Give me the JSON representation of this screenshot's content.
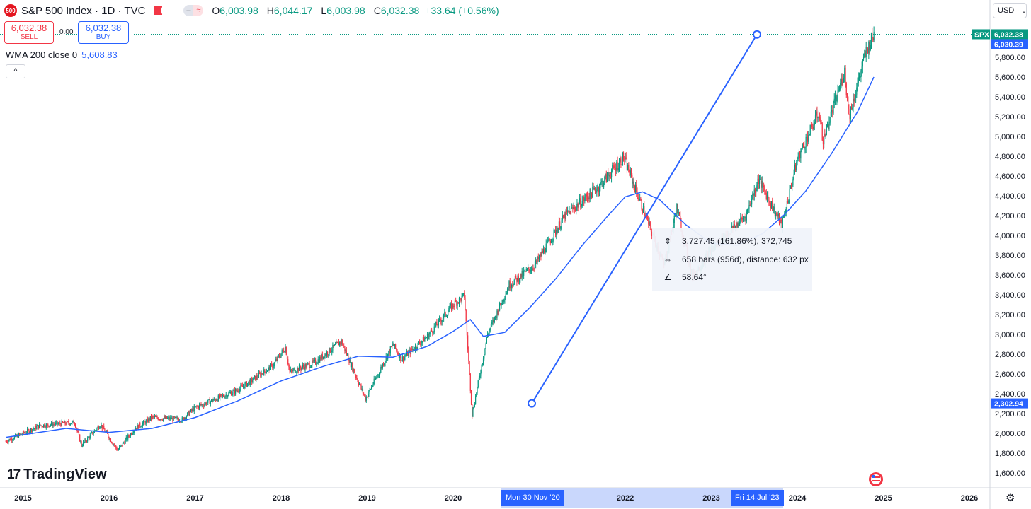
{
  "header": {
    "logo_text": "500",
    "title": "S&P 500 Index · 1D · TVC",
    "ohlc": {
      "o_label": "O",
      "o": "6,003.98",
      "h_label": "H",
      "h": "6,044.17",
      "l_label": "L",
      "l": "6,003.98",
      "c_label": "C",
      "c": "6,032.38",
      "change": "+33.64 (+0.56%)"
    }
  },
  "trade": {
    "sell_price": "6,032.38",
    "sell_label": "SELL",
    "spread": "0.00",
    "buy_price": "6,032.38",
    "buy_label": "BUY"
  },
  "indicator": {
    "label": "WMA 200 close 0",
    "value": "5,608.83"
  },
  "collapse_glyph": "^",
  "currency": "USD",
  "measure": {
    "price_change": "3,727.45 (161.86%), 372,745",
    "bars": "658 bars (956d), distance: 632 px",
    "angle": "58.64°",
    "start_price": 2302.94,
    "end_price": 6030.39,
    "start_date": "Mon 30 Nov '20",
    "end_date": "Fri 14 Jul '23"
  },
  "brand": "TradingView",
  "price_tags": {
    "symbol": "SPX",
    "last": "6,032.38",
    "measure_end": "6,030.39",
    "measure_start": "2,302.94"
  },
  "colors": {
    "up": "#089981",
    "down": "#f23645",
    "wma": "#2962ff",
    "accent": "#2962ff"
  },
  "chart_data": {
    "type": "candlestick",
    "title": "S&P 500 Index · 1D · TVC",
    "y_ticks": [
      1600,
      1800,
      2000,
      2200,
      2400,
      2600,
      2800,
      3000,
      3200,
      3400,
      3600,
      3800,
      4000,
      4200,
      4400,
      4600,
      4800,
      5000,
      5200,
      5400,
      5600,
      5800
    ],
    "y_tick_labels": [
      "1,600.00",
      "1,800.00",
      "2,000.00",
      "2,200.00",
      "2,400.00",
      "2,600.00",
      "2,800.00",
      "3,000.00",
      "3,200.00",
      "3,400.00",
      "3,600.00",
      "3,800.00",
      "4,000.00",
      "4,200.00",
      "4,400.00",
      "4,600.00",
      "4,800.00",
      "5,000.00",
      "5,200.00",
      "5,400.00",
      "5,600.00",
      "5,800.00"
    ],
    "x_ticks": [
      {
        "t": 2015.0,
        "label": "2015"
      },
      {
        "t": 2016.0,
        "label": "2016"
      },
      {
        "t": 2017.0,
        "label": "2017"
      },
      {
        "t": 2018.0,
        "label": "2018"
      },
      {
        "t": 2019.0,
        "label": "2019"
      },
      {
        "t": 2020.0,
        "label": "2020"
      },
      {
        "t": 2022.0,
        "label": "2022"
      },
      {
        "t": 2023.0,
        "label": "2023"
      },
      {
        "t": 2024.0,
        "label": "2024"
      },
      {
        "t": 2025.0,
        "label": "2025"
      },
      {
        "t": 2026.0,
        "label": "2026"
      }
    ],
    "price_path": [
      [
        2014.8,
        1920
      ],
      [
        2015.2,
        2080
      ],
      [
        2015.6,
        2110
      ],
      [
        2015.68,
        1880
      ],
      [
        2015.9,
        2090
      ],
      [
        2016.1,
        1830
      ],
      [
        2016.3,
        2050
      ],
      [
        2016.5,
        2160
      ],
      [
        2016.85,
        2140
      ],
      [
        2017.0,
        2260
      ],
      [
        2017.5,
        2440
      ],
      [
        2017.9,
        2680
      ],
      [
        2018.05,
        2870
      ],
      [
        2018.1,
        2620
      ],
      [
        2018.4,
        2720
      ],
      [
        2018.7,
        2930
      ],
      [
        2018.98,
        2350
      ],
      [
        2019.3,
        2900
      ],
      [
        2019.4,
        2750
      ],
      [
        2019.7,
        2980
      ],
      [
        2020.0,
        3300
      ],
      [
        2020.13,
        3390
      ],
      [
        2020.22,
        2190
      ],
      [
        2020.4,
        3000
      ],
      [
        2020.65,
        3500
      ],
      [
        2020.95,
        3700
      ],
      [
        2021.3,
        4200
      ],
      [
        2021.7,
        4500
      ],
      [
        2021.98,
        4790
      ],
      [
        2022.45,
        3700
      ],
      [
        2022.6,
        4280
      ],
      [
        2022.78,
        3580
      ],
      [
        2023.0,
        3850
      ],
      [
        2023.4,
        4200
      ],
      [
        2023.55,
        4570
      ],
      [
        2023.82,
        4100
      ],
      [
        2024.0,
        4770
      ],
      [
        2024.25,
        5250
      ],
      [
        2024.3,
        4960
      ],
      [
        2024.55,
        5660
      ],
      [
        2024.6,
        5200
      ],
      [
        2024.8,
        5860
      ],
      [
        2024.89,
        6032
      ]
    ],
    "wma_path": [
      [
        2014.8,
        1960
      ],
      [
        2015.5,
        2050
      ],
      [
        2016.0,
        2010
      ],
      [
        2016.5,
        2050
      ],
      [
        2017.0,
        2160
      ],
      [
        2017.5,
        2330
      ],
      [
        2018.0,
        2530
      ],
      [
        2018.5,
        2680
      ],
      [
        2018.9,
        2780
      ],
      [
        2019.3,
        2770
      ],
      [
        2019.7,
        2880
      ],
      [
        2020.0,
        3030
      ],
      [
        2020.2,
        3150
      ],
      [
        2020.35,
        2980
      ],
      [
        2020.6,
        3020
      ],
      [
        2020.9,
        3280
      ],
      [
        2021.2,
        3570
      ],
      [
        2021.5,
        3900
      ],
      [
        2021.8,
        4200
      ],
      [
        2022.0,
        4390
      ],
      [
        2022.2,
        4440
      ],
      [
        2022.4,
        4360
      ],
      [
        2022.7,
        4110
      ],
      [
        2023.0,
        3920
      ],
      [
        2023.3,
        3900
      ],
      [
        2023.6,
        4020
      ],
      [
        2023.85,
        4210
      ],
      [
        2024.1,
        4450
      ],
      [
        2024.4,
        4830
      ],
      [
        2024.7,
        5250
      ],
      [
        2024.89,
        5600
      ]
    ]
  }
}
